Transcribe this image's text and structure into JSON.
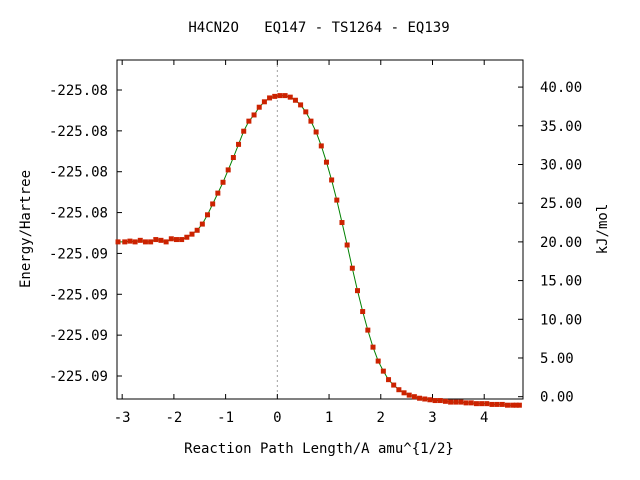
{
  "chart_data": {
    "type": "scatter",
    "title": "H4CN2O   EQ147 - TS1264 - EQ139",
    "xlabel": "Reaction Path Length/A amu^{1/2}",
    "ylabel": "Energy/Hartree",
    "y2label": "kJ/mol",
    "xlim": [
      -3.1,
      4.75
    ],
    "y2lim": [
      -0.3,
      43.5
    ],
    "x_ticks": [
      "-3",
      "-2",
      "-1",
      "0",
      "1",
      "2",
      "3",
      "4"
    ],
    "y_ticks_left": [
      "-225.08",
      "-225.08",
      "-225.08",
      "-225.08",
      "-225.09",
      "-225.09",
      "-225.09",
      "-225.09"
    ],
    "y_ticks_right": [
      "40.00",
      "35.00",
      "30.00",
      "25.00",
      "20.00",
      "15.00",
      "10.00",
      "5.00",
      "0.00"
    ],
    "vertical_marker_x": 0,
    "curve_color": "#008000",
    "marker_color": "#cc2200",
    "series": [
      {
        "x": [
          -3.08,
          -2.95,
          -2.85,
          -2.75,
          -2.65,
          -2.55,
          -2.45,
          -2.35,
          -2.25,
          -2.15,
          -2.05,
          -1.95,
          -1.85,
          -1.75,
          -1.65,
          -1.55,
          -1.45,
          -1.35,
          -1.25,
          -1.15,
          -1.05,
          -0.95,
          -0.85,
          -0.75,
          -0.65,
          -0.55,
          -0.45,
          -0.35,
          -0.25,
          -0.15,
          -0.05,
          0.05,
          0.15,
          0.25,
          0.35,
          0.45,
          0.55,
          0.65,
          0.75,
          0.85,
          0.95,
          1.05,
          1.15,
          1.25,
          1.35,
          1.45,
          1.55,
          1.65,
          1.75,
          1.85,
          1.95,
          2.05,
          2.15,
          2.25,
          2.35,
          2.45,
          2.55,
          2.65,
          2.75,
          2.85,
          2.95,
          3.05,
          3.15,
          3.25,
          3.35,
          3.45,
          3.55,
          3.65,
          3.75,
          3.85,
          3.95,
          4.05,
          4.15,
          4.25,
          4.35,
          4.45,
          4.55,
          4.62,
          4.68
        ],
        "y": [
          20.0,
          20.0,
          20.1,
          20.0,
          20.2,
          20.0,
          20.0,
          20.3,
          20.2,
          20.0,
          20.4,
          20.3,
          20.3,
          20.6,
          21.0,
          21.5,
          22.3,
          23.5,
          24.9,
          26.3,
          27.7,
          29.3,
          30.9,
          32.6,
          34.3,
          35.6,
          36.4,
          37.4,
          38.1,
          38.6,
          38.8,
          38.9,
          38.9,
          38.7,
          38.3,
          37.7,
          36.8,
          35.6,
          34.2,
          32.4,
          30.3,
          28.0,
          25.4,
          22.5,
          19.6,
          16.6,
          13.7,
          11.0,
          8.6,
          6.4,
          4.6,
          3.3,
          2.2,
          1.5,
          0.9,
          0.5,
          0.2,
          0.0,
          -0.2,
          -0.3,
          -0.4,
          -0.5,
          -0.5,
          -0.6,
          -0.7,
          -0.7,
          -0.7,
          -0.8,
          -0.8,
          -0.9,
          -0.9,
          -0.9,
          -1.0,
          -1.0,
          -1.0,
          -1.1,
          -1.1,
          -1.1,
          -1.1
        ]
      }
    ]
  }
}
